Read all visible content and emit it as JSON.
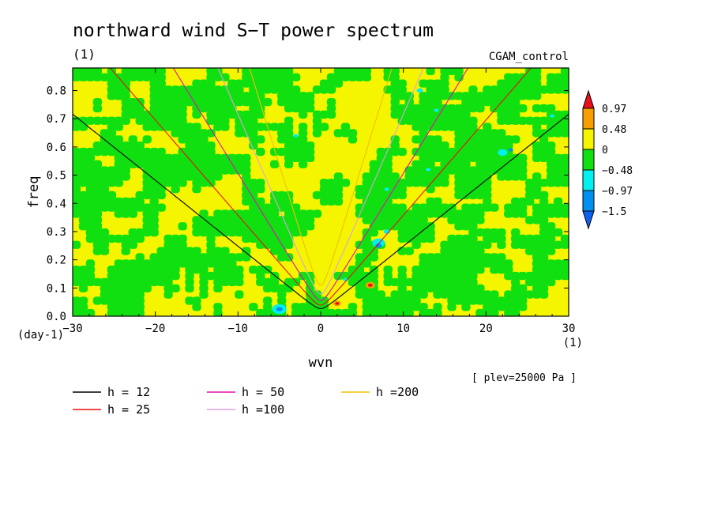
{
  "chart_data": {
    "type": "heatmap",
    "title": "northward wind S−T power spectrum",
    "units_label": "(1)",
    "run_label": "CGAM_control",
    "xlabel": "wvn",
    "ylabel": "freq",
    "x_unit": "(1)",
    "y_unit": "(day-1)",
    "footnote": "[ plev=25000 Pa ]",
    "xlim": [
      -30,
      30
    ],
    "ylim": [
      0.0,
      0.88
    ],
    "xticks": [
      "−30",
      "−20",
      "−10",
      "0",
      "10",
      "20",
      "30"
    ],
    "xtick_values": [
      -30,
      -20,
      -10,
      0,
      10,
      20,
      30
    ],
    "yticks": [
      "0.0",
      "0.1",
      "0.2",
      "0.3",
      "0.4",
      "0.5",
      "0.6",
      "0.7",
      "0.8"
    ],
    "ytick_values": [
      0.0,
      0.1,
      0.2,
      0.3,
      0.4,
      0.5,
      0.6,
      0.7,
      0.8
    ],
    "colorbar": {
      "levels": [
        "0.97",
        "0.48",
        "0",
        "−0.48",
        "−0.97",
        "−1.5"
      ],
      "colors": [
        "#e8101a",
        "#f5a000",
        "#f5f500",
        "#10e010",
        "#00f0f0",
        "#0090f0"
      ],
      "under_color": "#1060f0",
      "over_color": "#e8101a"
    },
    "field_colors": {
      "yellow": "#f5f500",
      "green": "#10e010",
      "orange": "#f5a000",
      "cyan": "#00f0f0",
      "blue": "#0090f0",
      "red": "#e8101a"
    },
    "dispersion_curves": [
      {
        "name": "h = 12",
        "h": 12,
        "color": "#000000"
      },
      {
        "name": "h = 25",
        "h": 25,
        "color": "#e81010"
      },
      {
        "name": "h = 50",
        "h": 50,
        "color": "#e010b0"
      },
      {
        "name": "h =100",
        "h": 100,
        "color": "#e0a0e0"
      },
      {
        "name": "h =200",
        "h": 200,
        "color": "#f0c000"
      }
    ]
  }
}
